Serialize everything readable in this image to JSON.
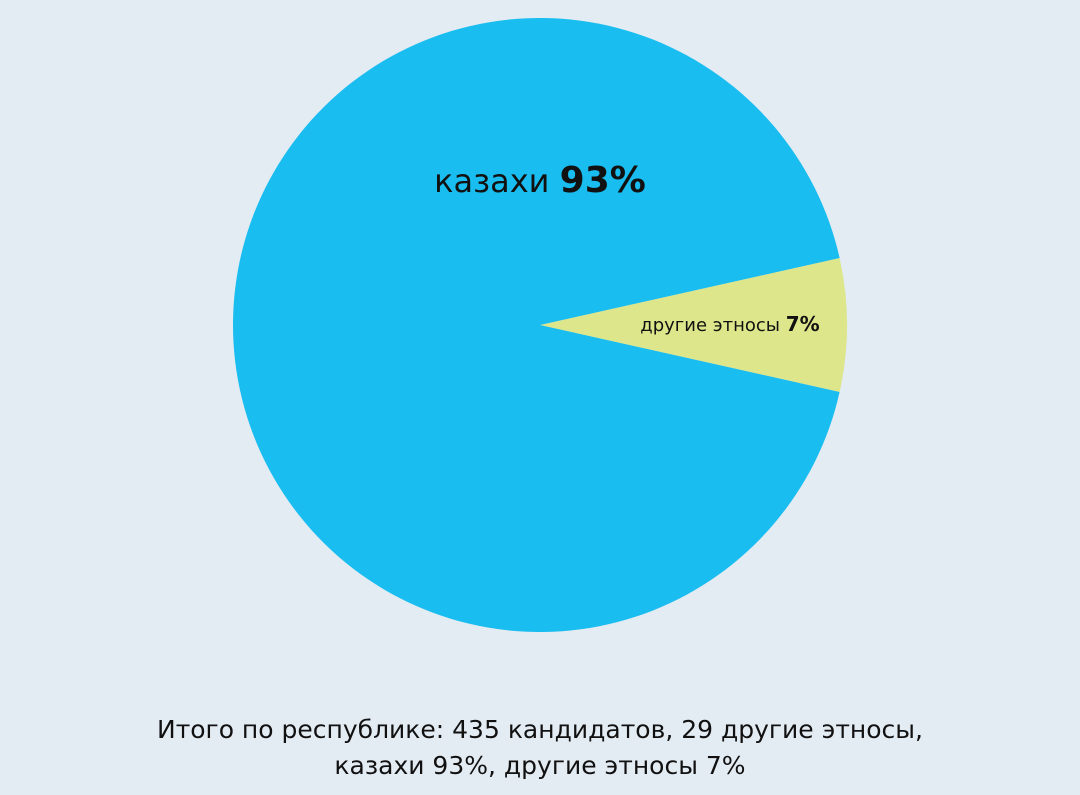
{
  "chart_data": {
    "type": "pie",
    "slices": [
      {
        "label": "казахи",
        "value": 93,
        "value_text": "93%",
        "color": "#19bdf0"
      },
      {
        "label": "другие этносы",
        "value": 7,
        "value_text": "7%",
        "color": "#dde68a"
      }
    ],
    "legend": "none"
  },
  "caption": {
    "line1": "Итого по республике: 435 кандидатов, 29 другие этносы,",
    "line2": "казахи 93%, другие этносы 7%"
  }
}
